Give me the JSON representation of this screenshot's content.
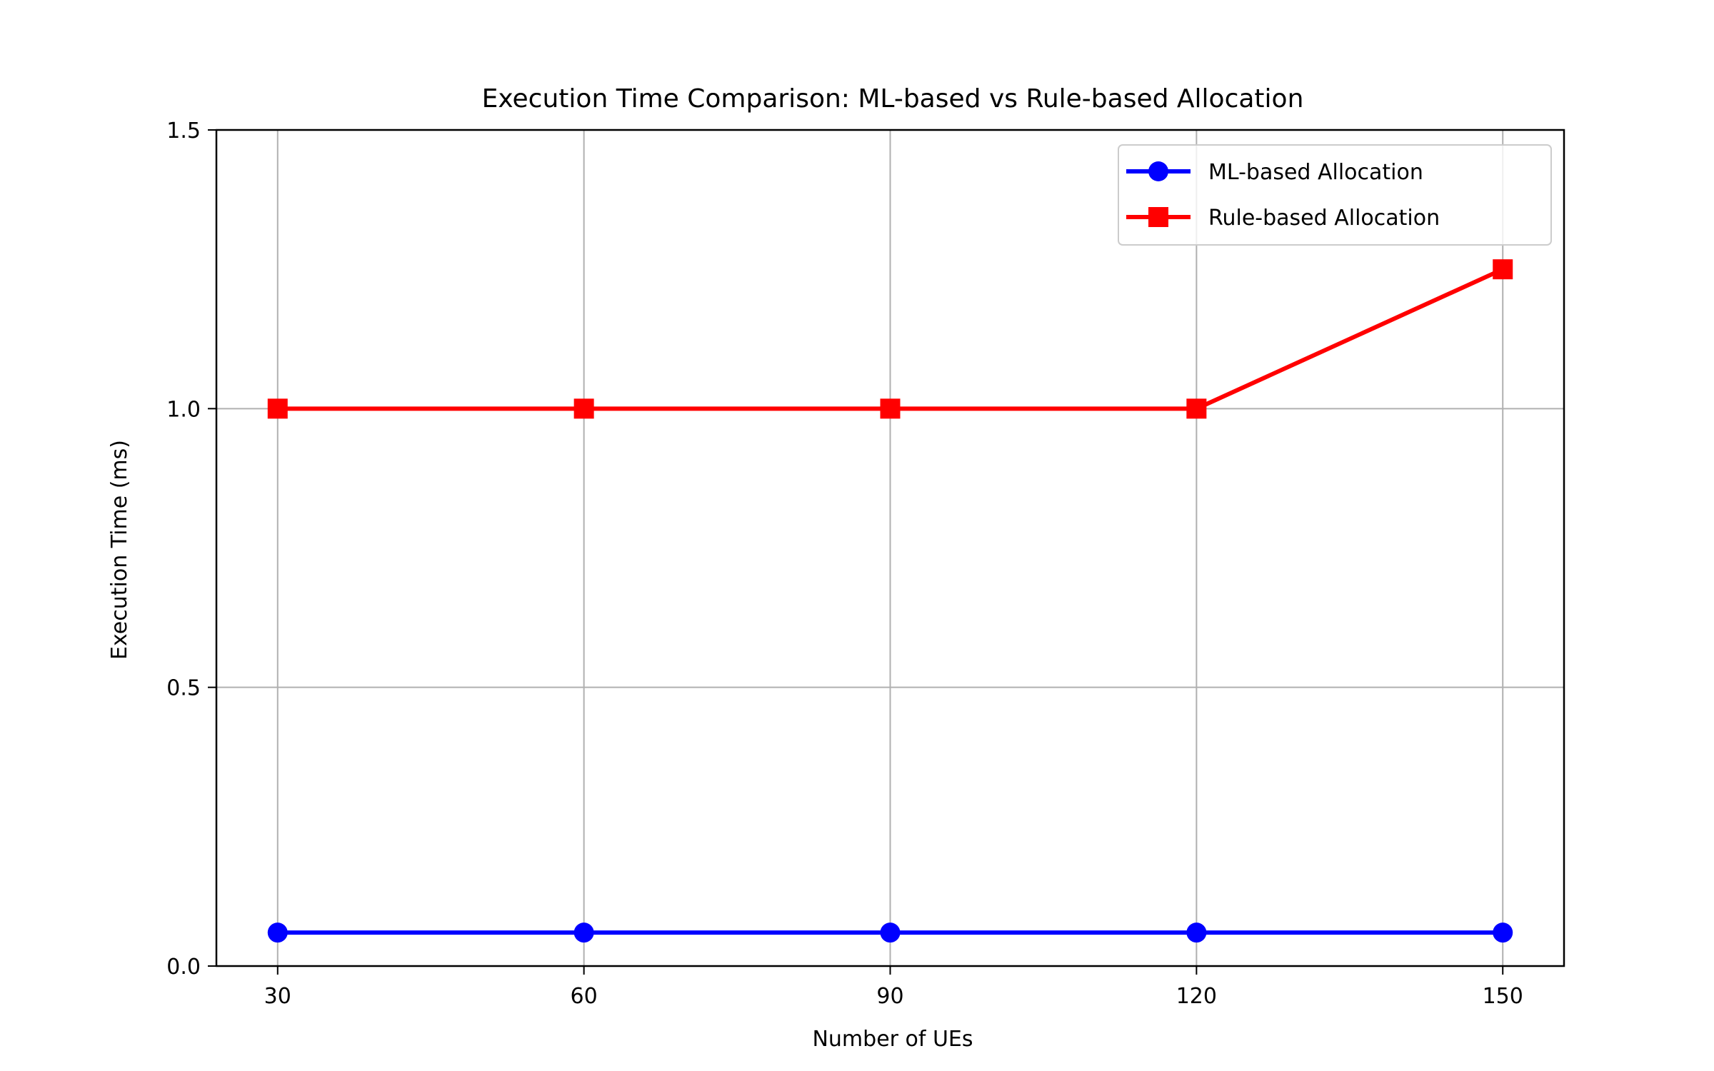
{
  "chart_data": {
    "type": "line",
    "title": "Execution Time Comparison: ML-based vs Rule-based Allocation",
    "xlabel": "Number of UEs",
    "ylabel": "Execution Time (ms)",
    "x": [
      30,
      60,
      90,
      120,
      150
    ],
    "x_tick_labels": [
      "30",
      "60",
      "90",
      "120",
      "150"
    ],
    "y_ticks": [
      0.0,
      0.5,
      1.0,
      1.5
    ],
    "y_tick_labels": [
      "0.0",
      "0.5",
      "1.0",
      "1.5"
    ],
    "xlim": [
      24,
      156
    ],
    "ylim": [
      0.0,
      1.5
    ],
    "grid": true,
    "legend_position": "top-right",
    "series": [
      {
        "name": "ML-based Allocation",
        "values": [
          0.06,
          0.06,
          0.06,
          0.06,
          0.06
        ],
        "color": "#0000ff",
        "marker": "circle"
      },
      {
        "name": "Rule-based Allocation",
        "values": [
          1.0,
          1.0,
          1.0,
          1.0,
          1.25
        ],
        "color": "#ff0000",
        "marker": "square"
      }
    ]
  }
}
